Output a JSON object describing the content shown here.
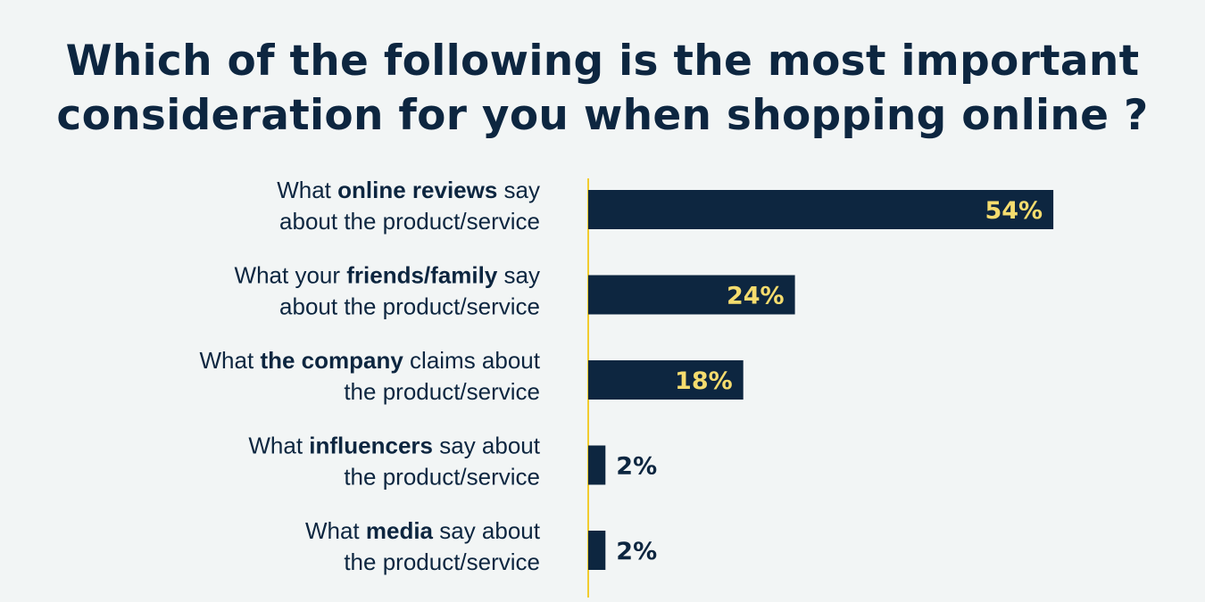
{
  "title": {
    "line1": "Which of the following is the most important",
    "line2": "consideration for you when shopping online ?"
  },
  "colors": {
    "bar": "#0d2640",
    "axis": "#f2cc2e",
    "value_inside": "#f5dc6e",
    "value_outside": "#0d2640",
    "background": "#f2f5f5"
  },
  "chart_data": {
    "type": "bar",
    "orientation": "horizontal",
    "categories": [
      "What online reviews say about the product/service",
      "What your friends/family say about the product/service",
      "What the company claims about the product/service",
      "What influencers say about the product/service",
      "What media say about the product/service"
    ],
    "category_labels": [
      {
        "line1": [
          {
            "t": "What ",
            "b": false
          },
          {
            "t": "online reviews",
            "b": true
          },
          {
            "t": " say",
            "b": false
          }
        ],
        "line2": "about the product/service"
      },
      {
        "line1": [
          {
            "t": "What your ",
            "b": false
          },
          {
            "t": "friends/family",
            "b": true
          },
          {
            "t": " say",
            "b": false
          }
        ],
        "line2": "about the product/service"
      },
      {
        "line1": [
          {
            "t": "What ",
            "b": false
          },
          {
            "t": "the company",
            "b": true
          },
          {
            "t": " claims about",
            "b": false
          }
        ],
        "line2": "the product/service"
      },
      {
        "line1": [
          {
            "t": "What ",
            "b": false
          },
          {
            "t": "influencers",
            "b": true
          },
          {
            "t": " say about",
            "b": false
          }
        ],
        "line2": "the product/service"
      },
      {
        "line1": [
          {
            "t": "What ",
            "b": false
          },
          {
            "t": "media",
            "b": true
          },
          {
            "t": " say about",
            "b": false
          }
        ],
        "line2": "the product/service"
      }
    ],
    "values": [
      54,
      24,
      18,
      2,
      2
    ],
    "value_labels": [
      "54%",
      "24%",
      "18%",
      "2%",
      "2%"
    ],
    "unit": "%",
    "xlim": [
      0,
      100
    ],
    "grid": false,
    "legend": "none"
  }
}
